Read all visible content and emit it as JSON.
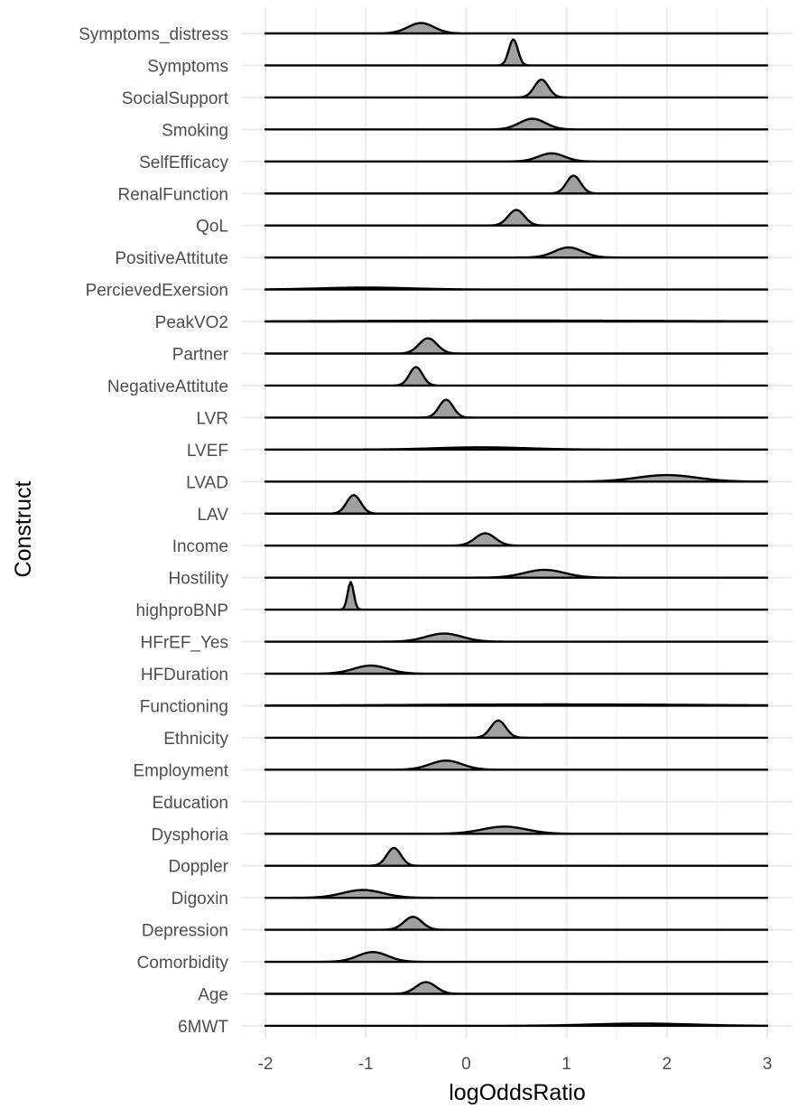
{
  "chart_data": {
    "type": "ridgeline",
    "xlabel": "logOddsRatio",
    "ylabel": "Construct",
    "xlim": [
      -2,
      3
    ],
    "x_ticks": [
      "-2",
      "-1",
      "0",
      "1",
      "2",
      "3"
    ],
    "grid": true,
    "fill_color": "#a0a0a0",
    "line_color": "#000000",
    "constructs": [
      {
        "name": "Symptoms_distress",
        "center": -0.45,
        "sd": 0.13,
        "height": 0.32
      },
      {
        "name": "Symptoms",
        "center": 0.47,
        "sd": 0.045,
        "height": 0.8
      },
      {
        "name": "SocialSupport",
        "center": 0.75,
        "sd": 0.07,
        "height": 0.55
      },
      {
        "name": "Smoking",
        "center": 0.66,
        "sd": 0.13,
        "height": 0.33
      },
      {
        "name": "SelfEfficacy",
        "center": 0.85,
        "sd": 0.13,
        "height": 0.25
      },
      {
        "name": "RenalFunction",
        "center": 1.07,
        "sd": 0.07,
        "height": 0.55
      },
      {
        "name": "QoL",
        "center": 0.5,
        "sd": 0.08,
        "height": 0.48
      },
      {
        "name": "PositiveAttitute",
        "center": 1.02,
        "sd": 0.14,
        "height": 0.31
      },
      {
        "name": "PercievedExersion",
        "center": -1.0,
        "sd": 0.45,
        "height": 0.06
      },
      {
        "name": "PeakVO2",
        "center": 0.5,
        "sd": 1.5,
        "height": 0.03
      },
      {
        "name": "Partner",
        "center": -0.38,
        "sd": 0.09,
        "height": 0.47
      },
      {
        "name": "NegativeAttitute",
        "center": -0.5,
        "sd": 0.065,
        "height": 0.57
      },
      {
        "name": "LVR",
        "center": -0.2,
        "sd": 0.07,
        "height": 0.55
      },
      {
        "name": "LVEF",
        "center": 0.15,
        "sd": 0.45,
        "height": 0.07
      },
      {
        "name": "LVAD",
        "center": 2.0,
        "sd": 0.3,
        "height": 0.2
      },
      {
        "name": "LAV",
        "center": -1.12,
        "sd": 0.07,
        "height": 0.57
      },
      {
        "name": "Income",
        "center": 0.19,
        "sd": 0.1,
        "height": 0.38
      },
      {
        "name": "Hostility",
        "center": 0.78,
        "sd": 0.2,
        "height": 0.24
      },
      {
        "name": "highproBNP",
        "center": -1.15,
        "sd": 0.03,
        "height": 0.85
      },
      {
        "name": "HFrEF_Yes",
        "center": -0.22,
        "sd": 0.18,
        "height": 0.25
      },
      {
        "name": "HFDuration",
        "center": -0.95,
        "sd": 0.17,
        "height": 0.25
      },
      {
        "name": "Functioning",
        "center": 0.9,
        "sd": 1.4,
        "height": 0.04
      },
      {
        "name": "Ethnicity",
        "center": 0.32,
        "sd": 0.075,
        "height": 0.53
      },
      {
        "name": "Employment",
        "center": -0.2,
        "sd": 0.16,
        "height": 0.28
      },
      {
        "name": "Education",
        "center": 0,
        "sd": 1,
        "height": 0
      },
      {
        "name": "Dysphoria",
        "center": 0.38,
        "sd": 0.22,
        "height": 0.22
      },
      {
        "name": "Doppler",
        "center": -0.72,
        "sd": 0.07,
        "height": 0.55
      },
      {
        "name": "Digoxin",
        "center": -1.03,
        "sd": 0.2,
        "height": 0.24
      },
      {
        "name": "Depression",
        "center": -0.53,
        "sd": 0.09,
        "height": 0.4
      },
      {
        "name": "Comorbidity",
        "center": -0.93,
        "sd": 0.15,
        "height": 0.3
      },
      {
        "name": "Age",
        "center": -0.4,
        "sd": 0.1,
        "height": 0.36
      },
      {
        "name": "6MWT",
        "center": 1.75,
        "sd": 0.5,
        "height": 0.07
      }
    ]
  }
}
